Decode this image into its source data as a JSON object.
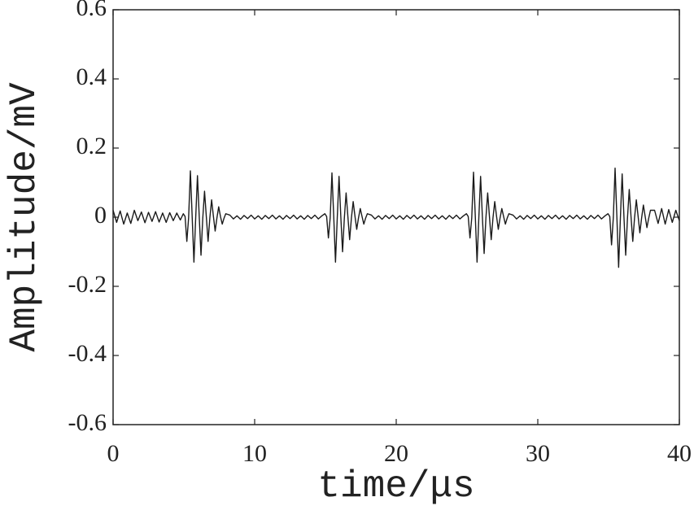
{
  "chart_data": {
    "type": "line",
    "xlabel": "time/μs",
    "ylabel": "Amplitude/mV",
    "xlim": [
      0,
      40
    ],
    "xticks": [
      0,
      10,
      20,
      30,
      40
    ],
    "ylim": [
      -0.6,
      0.6
    ],
    "yticks": [
      -0.6,
      -0.4,
      -0.2,
      0,
      0.2,
      0.4,
      0.6
    ],
    "grid": false,
    "series": [
      {
        "color": "#1a1a1a",
        "x": [
          0,
          0.25,
          0.5,
          0.75,
          1,
          1.25,
          1.5,
          1.75,
          2,
          2.25,
          2.5,
          2.75,
          3,
          3.25,
          3.5,
          3.75,
          4,
          4.25,
          4.5,
          4.75,
          4.96,
          5.085,
          5.21,
          5.335,
          5.46,
          5.585,
          5.71,
          5.835,
          5.96,
          6.085,
          6.21,
          6.335,
          6.46,
          6.585,
          6.71,
          6.835,
          6.96,
          7.085,
          7.21,
          7.335,
          7.46,
          7.585,
          7.71,
          7.835,
          7.96,
          8.25,
          8.5,
          8.75,
          9,
          9.25,
          9.5,
          9.75,
          10,
          10.25,
          10.5,
          10.75,
          11,
          11.25,
          11.5,
          11.75,
          12,
          12.25,
          12.5,
          12.75,
          13,
          13.25,
          13.5,
          13.75,
          14,
          14.25,
          14.5,
          14.75,
          14.96,
          15.085,
          15.21,
          15.335,
          15.46,
          15.585,
          15.71,
          15.835,
          15.96,
          16.085,
          16.21,
          16.335,
          16.46,
          16.585,
          16.71,
          16.835,
          16.96,
          17.085,
          17.21,
          17.335,
          17.46,
          17.585,
          17.71,
          17.835,
          17.96,
          18.25,
          18.5,
          18.75,
          19,
          19.25,
          19.5,
          19.75,
          20,
          20.25,
          20.5,
          20.75,
          21,
          21.25,
          21.5,
          21.75,
          22,
          22.25,
          22.5,
          22.75,
          23,
          23.25,
          23.5,
          23.75,
          24,
          24.25,
          24.5,
          24.75,
          24.96,
          25.085,
          25.21,
          25.335,
          25.46,
          25.585,
          25.71,
          25.835,
          25.96,
          26.085,
          26.21,
          26.335,
          26.46,
          26.585,
          26.71,
          26.835,
          26.96,
          27.085,
          27.21,
          27.335,
          27.46,
          27.585,
          27.71,
          27.835,
          27.96,
          28.25,
          28.5,
          28.75,
          29,
          29.25,
          29.5,
          29.75,
          30,
          30.25,
          30.5,
          30.75,
          31,
          31.25,
          31.5,
          31.75,
          32,
          32.25,
          32.5,
          32.75,
          33,
          33.25,
          33.5,
          33.75,
          34,
          34.25,
          34.5,
          34.75,
          34.96,
          35.085,
          35.21,
          35.335,
          35.46,
          35.585,
          35.71,
          35.835,
          35.96,
          36.085,
          36.21,
          36.335,
          36.46,
          36.585,
          36.71,
          36.835,
          36.96,
          37.085,
          37.21,
          37.335,
          37.46,
          37.585,
          37.71,
          37.835,
          37.96,
          38.25,
          38.5,
          38.75,
          39,
          39.25,
          39.5,
          39.75,
          40
        ],
        "values": [
          0.02,
          -0.015,
          0.018,
          -0.02,
          0.012,
          -0.018,
          0.02,
          -0.01,
          0.015,
          -0.016,
          0.014,
          -0.012,
          0.016,
          -0.014,
          0.012,
          -0.015,
          0.013,
          -0.01,
          0.012,
          -0.008,
          0.01,
          0.002,
          -0.07,
          -0.002,
          0.134,
          0.003,
          -0.13,
          -0.002,
          0.12,
          0.002,
          -0.11,
          -0.003,
          0.075,
          0.002,
          -0.07,
          -0.002,
          0.05,
          0.003,
          -0.04,
          -0.002,
          0.03,
          0.002,
          -0.02,
          -0.003,
          0.01,
          0.006,
          -0.005,
          0.004,
          -0.006,
          0.005,
          -0.004,
          0.006,
          -0.005,
          0.004,
          -0.006,
          0.005,
          -0.004,
          0.006,
          -0.005,
          0.004,
          -0.006,
          0.005,
          -0.004,
          0.006,
          -0.005,
          0.004,
          -0.006,
          0.005,
          -0.004,
          0.006,
          -0.005,
          0.004,
          0.01,
          0.002,
          -0.06,
          -0.002,
          0.128,
          0.003,
          -0.13,
          -0.002,
          0.118,
          0.002,
          -0.1,
          -0.003,
          0.07,
          0.002,
          -0.065,
          -0.002,
          0.045,
          0.003,
          -0.035,
          -0.002,
          0.025,
          0.002,
          -0.02,
          -0.003,
          0.01,
          0.006,
          -0.005,
          0.004,
          -0.006,
          0.005,
          -0.004,
          0.006,
          -0.005,
          0.004,
          -0.006,
          0.005,
          -0.004,
          0.006,
          -0.005,
          0.004,
          -0.006,
          0.005,
          -0.004,
          0.006,
          -0.005,
          0.004,
          -0.006,
          0.005,
          -0.004,
          0.006,
          -0.005,
          0.004,
          0.01,
          0.002,
          -0.06,
          -0.002,
          0.13,
          0.003,
          -0.13,
          -0.002,
          0.118,
          0.002,
          -0.105,
          -0.003,
          0.07,
          0.002,
          -0.065,
          -0.002,
          0.045,
          0.003,
          -0.035,
          -0.002,
          0.025,
          0.002,
          -0.02,
          -0.003,
          0.01,
          0.006,
          -0.005,
          0.004,
          -0.006,
          0.005,
          -0.004,
          0.006,
          -0.005,
          0.004,
          -0.006,
          0.005,
          -0.004,
          0.006,
          -0.005,
          0.004,
          -0.006,
          0.005,
          -0.004,
          0.006,
          -0.005,
          0.004,
          -0.006,
          0.005,
          -0.004,
          0.006,
          -0.005,
          0.004,
          0.01,
          0.002,
          -0.08,
          -0.002,
          0.142,
          0.003,
          -0.145,
          -0.002,
          0.125,
          0.002,
          -0.11,
          -0.003,
          0.08,
          0.002,
          -0.07,
          -0.002,
          0.05,
          0.003,
          -0.045,
          -0.002,
          0.035,
          0.002,
          -0.03,
          -0.003,
          0.02,
          0.02,
          -0.018,
          0.025,
          -0.02,
          0.022,
          -0.015,
          0.02,
          -0.01
        ]
      }
    ]
  }
}
